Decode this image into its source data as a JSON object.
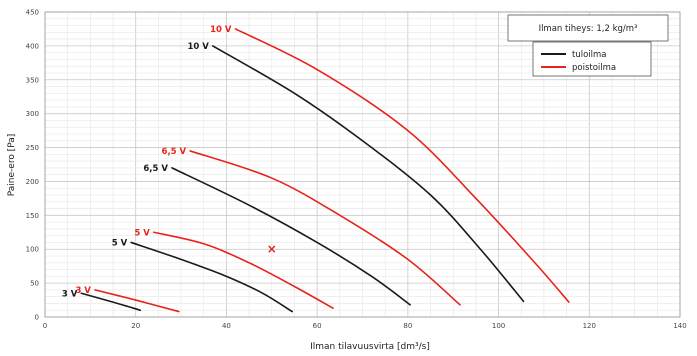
{
  "chart_data": {
    "type": "line",
    "xlabel": "Ilman tilavuusvirta [dm³/s]",
    "ylabel": "Paine-ero [Pa]",
    "xlim": [
      0,
      140
    ],
    "ylim": [
      0,
      450
    ],
    "xticks": [
      0,
      20,
      40,
      60,
      80,
      100,
      120,
      140
    ],
    "yticks": [
      0,
      50,
      100,
      150,
      200,
      250,
      300,
      350,
      400,
      450
    ],
    "grid": true,
    "info_box": "Ilman tiheys: 1,2 kg/m³",
    "legend": {
      "position": "top-right",
      "entries": [
        {
          "label": "tuloilma",
          "color": "#1a1a1a"
        },
        {
          "label": "poistoilma",
          "color": "#e8231a"
        }
      ]
    },
    "marker": {
      "symbol": "×",
      "x": 50,
      "y": 100,
      "color": "#e8231a"
    },
    "series": [
      {
        "group": "tuloilma",
        "label": "10 V",
        "color": "#1a1a1a",
        "points": [
          [
            37,
            400
          ],
          [
            55,
            330
          ],
          [
            70,
            260
          ],
          [
            85,
            180
          ],
          [
            96,
            100
          ],
          [
            105.5,
            23
          ]
        ]
      },
      {
        "group": "tuloilma",
        "label": "6,5 V",
        "color": "#1a1a1a",
        "points": [
          [
            28,
            220
          ],
          [
            45,
            165
          ],
          [
            60,
            110
          ],
          [
            72,
            60
          ],
          [
            80.5,
            18
          ]
        ]
      },
      {
        "group": "tuloilma",
        "label": "5 V",
        "color": "#1a1a1a",
        "points": [
          [
            19,
            110
          ],
          [
            30,
            85
          ],
          [
            40,
            60
          ],
          [
            48,
            35
          ],
          [
            54.5,
            8
          ]
        ]
      },
      {
        "group": "tuloilma",
        "label": "3 V",
        "color": "#1a1a1a",
        "points": [
          [
            8,
            35
          ],
          [
            15,
            22
          ],
          [
            21,
            10
          ]
        ]
      },
      {
        "group": "poistoilma",
        "label": "10 V",
        "color": "#e8231a",
        "points": [
          [
            42,
            425
          ],
          [
            60,
            365
          ],
          [
            80,
            275
          ],
          [
            95,
            175
          ],
          [
            108,
            80
          ],
          [
            115.5,
            22
          ]
        ]
      },
      {
        "group": "poistoilma",
        "label": "6,5 V",
        "color": "#e8231a",
        "points": [
          [
            32,
            245
          ],
          [
            50,
            205
          ],
          [
            65,
            150
          ],
          [
            80,
            85
          ],
          [
            91.5,
            18
          ]
        ]
      },
      {
        "group": "poistoilma",
        "label": "5 V",
        "color": "#e8231a",
        "points": [
          [
            24,
            125
          ],
          [
            35,
            108
          ],
          [
            45,
            80
          ],
          [
            55,
            45
          ],
          [
            63.5,
            13
          ]
        ]
      },
      {
        "group": "poistoilma",
        "label": "3 V",
        "color": "#e8231a",
        "points": [
          [
            11,
            40
          ],
          [
            20,
            25
          ],
          [
            29.5,
            8
          ]
        ]
      }
    ]
  }
}
